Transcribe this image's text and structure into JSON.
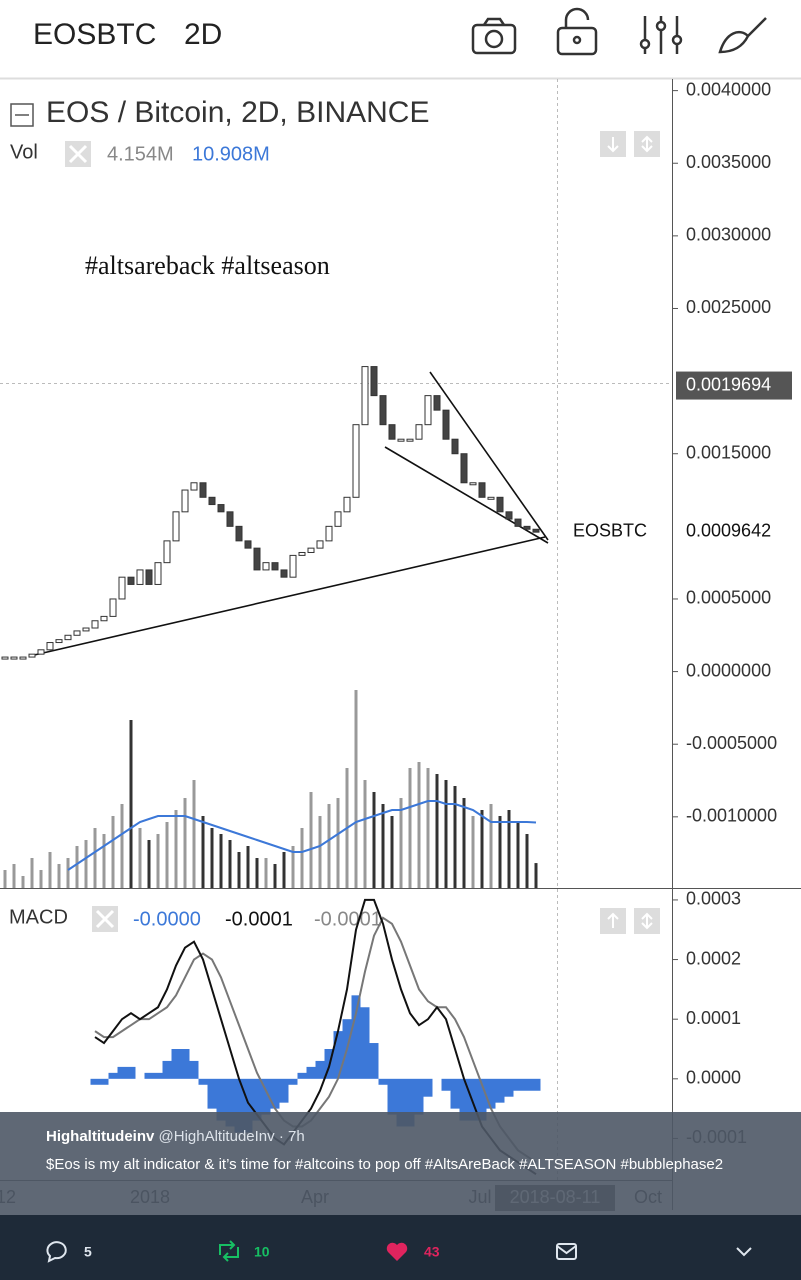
{
  "header": {
    "symbol": "EOSBTC",
    "interval": "2D"
  },
  "chart_data": [
    {
      "type": "candlestick",
      "title": "EOS / Bitcoin, 2D, BINANCE",
      "volume_label": "Vol",
      "volume_readouts": [
        "4.154M",
        "10.908M"
      ],
      "annotation": "#altsareback #altseason",
      "values": [
        0.0001,
        0.0001,
        0.0001,
        0.00012,
        0.00015,
        0.0002,
        0.00022,
        0.00025,
        0.00028,
        0.0003,
        0.00035,
        0.00038,
        0.0005,
        0.00065,
        0.0006,
        0.0007,
        0.0006,
        0.00075,
        0.0009,
        0.0011,
        0.00125,
        0.0013,
        0.0012,
        0.00115,
        0.0011,
        0.001,
        0.0009,
        0.00085,
        0.0007,
        0.00075,
        0.0007,
        0.00065,
        0.0008,
        0.00082,
        0.00085,
        0.0009,
        0.001,
        0.0011,
        0.0012,
        0.0017,
        0.0021,
        0.0019,
        0.0017,
        0.0016,
        0.0016,
        0.0016,
        0.0017,
        0.0019,
        0.0018,
        0.0016,
        0.0015,
        0.0013,
        0.0013,
        0.0012,
        0.0012,
        0.0011,
        0.00105,
        0.001,
        0.00098,
        0.00096
      ],
      "volume": [
        3,
        4,
        2,
        5,
        3,
        6,
        4,
        5,
        7,
        8,
        10,
        9,
        12,
        14,
        28,
        10,
        8,
        9,
        11,
        13,
        15,
        18,
        12,
        10,
        9,
        8,
        6,
        7,
        5,
        5,
        4,
        6,
        7,
        10,
        16,
        12,
        14,
        15,
        20,
        33,
        18,
        16,
        14,
        12,
        15,
        20,
        21,
        20,
        19,
        18,
        17,
        15,
        12,
        13,
        14,
        12,
        13,
        11,
        9,
        4.154
      ],
      "volume_ma": [
        null,
        null,
        null,
        null,
        null,
        null,
        null,
        3,
        4,
        5,
        6,
        7,
        8,
        9,
        10,
        11,
        11.5,
        12,
        12,
        12,
        12,
        11.5,
        11,
        10.5,
        10,
        9.5,
        9,
        8.5,
        8,
        7.5,
        7,
        6.5,
        6,
        6,
        6.5,
        7,
        8,
        9,
        10,
        11,
        11.5,
        12,
        12.5,
        13,
        13,
        13.5,
        14,
        14.5,
        14.5,
        14,
        14,
        13.5,
        13,
        12,
        11,
        11,
        11,
        11,
        11,
        10.908
      ],
      "ylim": [
        -0.00149,
        0.00408
      ],
      "yticks": [
        {
          "value": 0.004,
          "label": "0.0040000"
        },
        {
          "value": 0.0035,
          "label": "0.0035000"
        },
        {
          "value": 0.003,
          "label": "0.0030000"
        },
        {
          "value": 0.0025,
          "label": "0.0025000"
        },
        {
          "value": 0.0015,
          "label": "0.0015000"
        },
        {
          "value": 0.0005,
          "label": "0.0005000"
        },
        {
          "value": 0,
          "label": "0.0000000"
        },
        {
          "value": -0.0005,
          "label": "-0.0005000"
        },
        {
          "value": -0.001,
          "label": "-0.0010000"
        }
      ],
      "price_markers": [
        {
          "value": 0.0019694,
          "label": "0.0019694"
        },
        {
          "value": 0.0009642,
          "label": "0.0009642",
          "name": "EOSBTC"
        }
      ],
      "x_labels": [
        "12",
        "2018",
        "Apr",
        "Jul",
        "2018-08-11",
        "Oct"
      ]
    },
    {
      "type": "macd",
      "label": "MACD",
      "readouts": [
        "-0.0000",
        "-0.0001",
        "-0.0001"
      ],
      "macd": [
        null,
        null,
        null,
        null,
        null,
        null,
        null,
        null,
        null,
        null,
        7e-05,
        6e-05,
        8e-05,
        0.0001,
        0.00011,
        0.0001,
        0.00011,
        0.00012,
        0.00015,
        0.00019,
        0.00022,
        0.00023,
        0.0002,
        0.00015,
        0.0001,
        5e-05,
        0,
        -4e-05,
        -6e-05,
        -8e-05,
        -0.0001,
        -0.00011,
        -9e-05,
        -7e-05,
        -5e-05,
        -2e-05,
        2e-05,
        8e-05,
        0.00015,
        0.00025,
        0.0003,
        0.0003,
        0.00026,
        0.0002,
        0.00015,
        0.00011,
        9e-05,
        0.0001,
        0.00012,
        0.0001,
        5e-05,
        0,
        -4e-05,
        -8e-05,
        -0.0001,
        -0.00012,
        -0.00013,
        -0.00014,
        -0.00015,
        -0.00016
      ],
      "signal": [
        null,
        null,
        null,
        null,
        null,
        null,
        null,
        null,
        null,
        null,
        8e-05,
        7e-05,
        7e-05,
        8e-05,
        9e-05,
        0.0001,
        0.0001,
        0.00011,
        0.00012,
        0.00014,
        0.00017,
        0.0002,
        0.00021,
        0.0002,
        0.00017,
        0.00013,
        9e-05,
        5e-05,
        1e-05,
        -2e-05,
        -5e-05,
        -7e-05,
        -8e-05,
        -8e-05,
        -7e-05,
        -5e-05,
        -3e-05,
        0,
        5e-05,
        0.00011,
        0.00018,
        0.00024,
        0.00027,
        0.00026,
        0.00023,
        0.00019,
        0.00015,
        0.00013,
        0.00012,
        0.00012,
        0.0001,
        7e-05,
        3e-05,
        -1e-05,
        -5e-05,
        -8e-05,
        -0.0001,
        -0.00012,
        -0.00013,
        -0.00014
      ],
      "histogram": [
        null,
        null,
        null,
        null,
        null,
        null,
        null,
        null,
        null,
        null,
        -1e-05,
        -1e-05,
        1e-05,
        2e-05,
        2e-05,
        0,
        1e-05,
        1e-05,
        3e-05,
        5e-05,
        5e-05,
        3e-05,
        -1e-05,
        -5e-05,
        -7e-05,
        -8e-05,
        -9e-05,
        -9e-05,
        -7e-05,
        -6e-05,
        -5e-05,
        -4e-05,
        -1e-05,
        1e-05,
        2e-05,
        3e-05,
        5e-05,
        8e-05,
        0.0001,
        0.00014,
        0.00012,
        6e-05,
        -1e-05,
        -6e-05,
        -8e-05,
        -8e-05,
        -6e-05,
        -3e-05,
        0,
        -2e-05,
        -5e-05,
        -7e-05,
        -7e-05,
        -7e-05,
        -5e-05,
        -4e-05,
        -3e-05,
        -2e-05,
        -2e-05,
        -2e-05
      ],
      "ylim": [
        -0.00022,
        0.00032
      ],
      "yticks": [
        0.0003,
        0.0002,
        0.0001,
        {
          "value": 0,
          "label": "0.0000"
        },
        -0.0001
      ]
    }
  ],
  "tweet": {
    "name": "Highaltitudeinv",
    "handle": "@HighAltitudeInv",
    "time": "· 7h",
    "text": [
      "$Eos",
      "is my alt indicator & it’s time for",
      "#altcoins",
      "to pop off",
      "#AltsAreBack",
      "#ALTSEASON",
      "#bubblephase2"
    ]
  },
  "actions": {
    "replies": 5,
    "retweets": 10,
    "likes": 43
  }
}
